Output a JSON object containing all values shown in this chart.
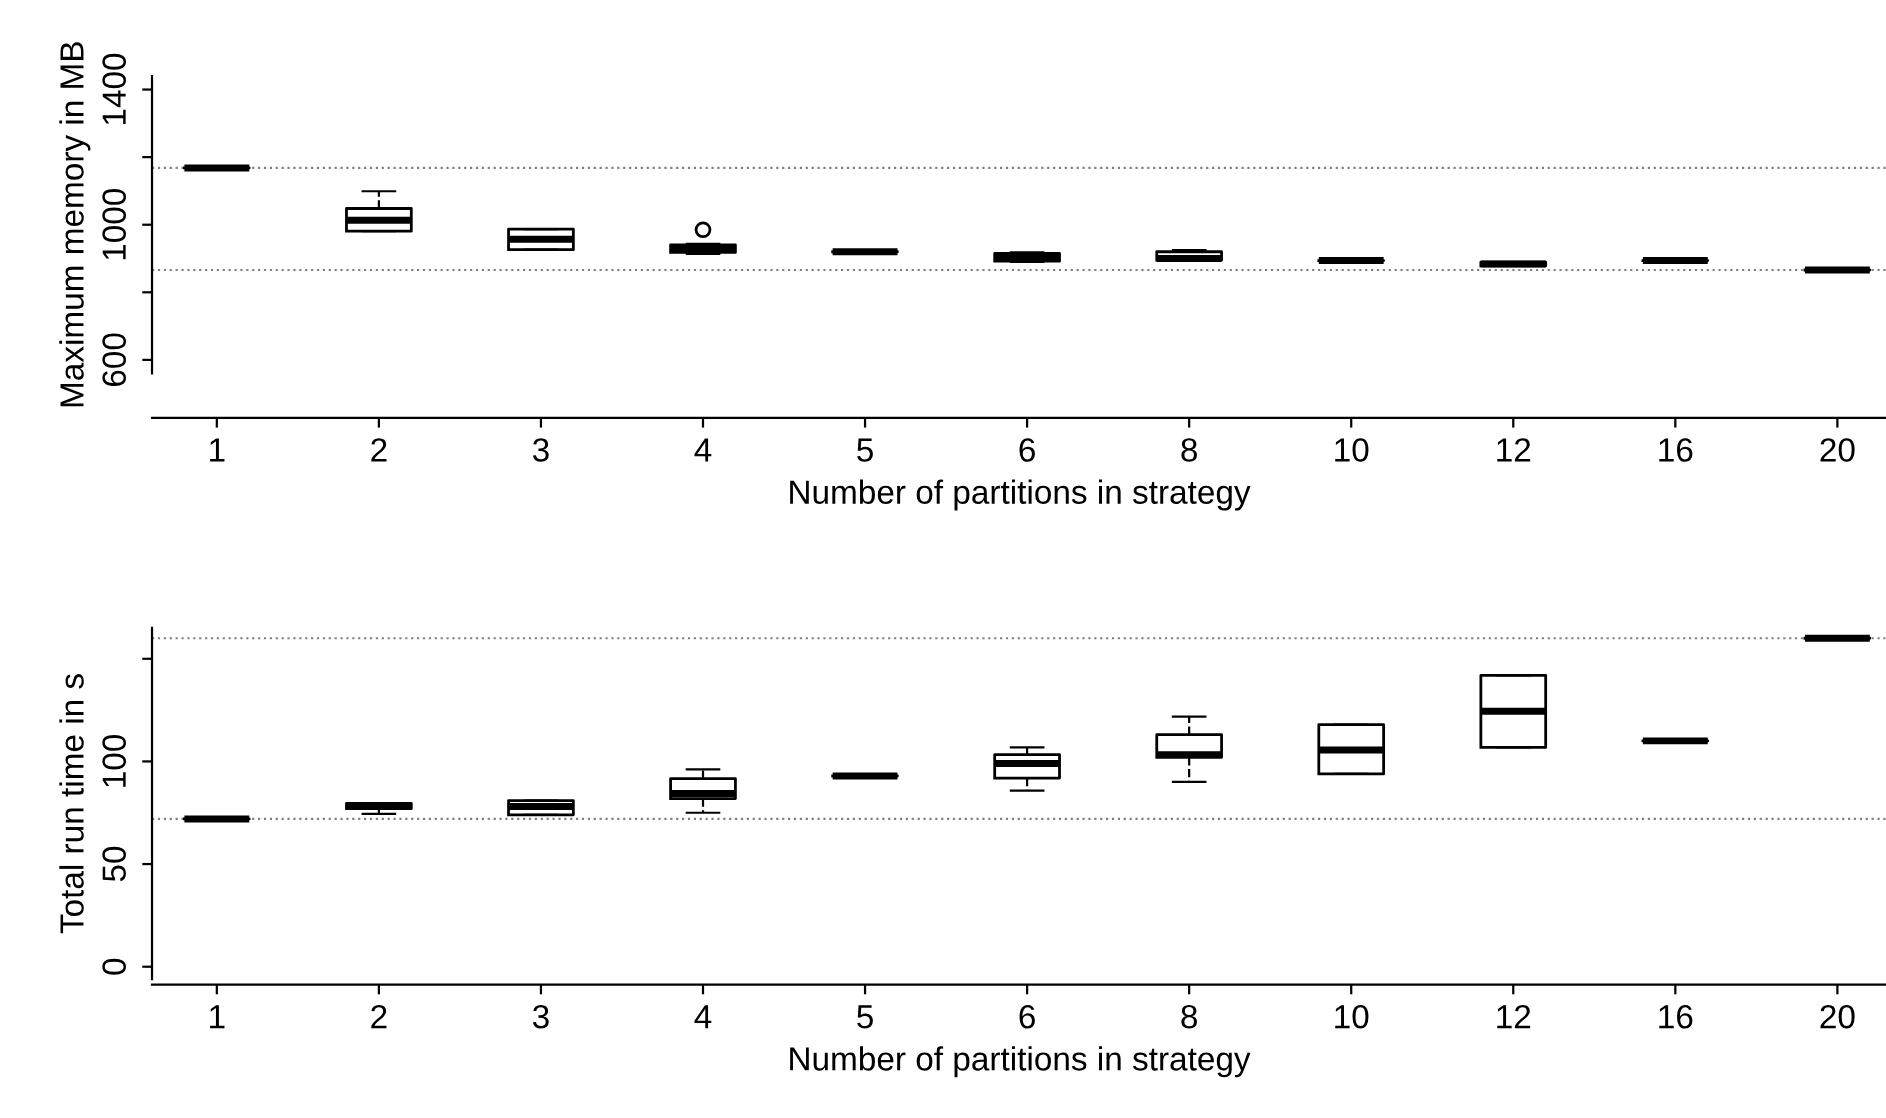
{
  "chart_data": [
    {
      "type": "box",
      "xlabel": "Number of partitions in strategy",
      "ylabel": "Maximum memory in MB",
      "categories": [
        "1",
        "2",
        "3",
        "4",
        "5",
        "6",
        "8",
        "10",
        "12",
        "16",
        "20"
      ],
      "boxes": [
        {
          "low": 1168,
          "q1": 1168,
          "median": 1168,
          "q3": 1168,
          "high": 1168
        },
        {
          "low": 981,
          "q1": 981,
          "median": 1013,
          "q3": 1048,
          "high": 1099
        },
        {
          "low": 926,
          "q1": 926,
          "median": 957,
          "q3": 987,
          "high": 987
        },
        {
          "low": 914,
          "q1": 918,
          "median": 930,
          "q3": 940,
          "high": 943,
          "outliers": [
            985
          ]
        },
        {
          "low": 920,
          "q1": 920,
          "median": 920,
          "q3": 920,
          "high": 920
        },
        {
          "low": 890,
          "q1": 892,
          "median": 904,
          "q3": 915,
          "high": 918
        },
        {
          "low": 893,
          "q1": 895,
          "median": 900,
          "q3": 920,
          "high": 925
        },
        {
          "low": 894,
          "q1": 894,
          "median": 894,
          "q3": 894,
          "high": 894
        },
        {
          "low": 878,
          "q1": 878,
          "median": 884,
          "q3": 889,
          "high": 889
        },
        {
          "low": 894,
          "q1": 894,
          "median": 894,
          "q3": 894,
          "high": 894
        },
        {
          "low": 866,
          "q1": 866,
          "median": 866,
          "q3": 866,
          "high": 866
        }
      ],
      "ylim": [
        560,
        1440
      ],
      "yticks": [
        600,
        {
          "value": 800,
          "label": null
        },
        1000,
        {
          "value": 1200,
          "label": null
        },
        1400
      ],
      "ref_lines": [
        {
          "axis": "y",
          "value": 1168,
          "color": "#808080",
          "line_style": "dotted"
        },
        {
          "axis": "y",
          "value": 866,
          "color": "#808080",
          "line_style": "dotted"
        }
      ],
      "grid": false
    },
    {
      "type": "box",
      "xlabel": "Number of partitions in strategy",
      "ylabel": "Total run time in s",
      "categories": [
        "1",
        "2",
        "3",
        "4",
        "5",
        "6",
        "8",
        "10",
        "12",
        "16",
        "20"
      ],
      "boxes": [
        {
          "low": 72,
          "q1": 72,
          "median": 72,
          "q3": 72,
          "high": 72
        },
        {
          "low": 74.4,
          "q1": 77,
          "median": 78.3,
          "q3": 79.5,
          "high": 79.5
        },
        {
          "low": 74,
          "q1": 74,
          "median": 78,
          "q3": 80.9,
          "high": 80.9
        },
        {
          "low": 75,
          "q1": 81.9,
          "median": 84.4,
          "q3": 91.6,
          "high": 96.1
        },
        {
          "low": 92.9,
          "q1": 92.9,
          "median": 92.9,
          "q3": 92.9,
          "high": 92.9
        },
        {
          "low": 85.8,
          "q1": 91.9,
          "median": 99,
          "q3": 103.3,
          "high": 106.8
        },
        {
          "low": 90,
          "q1": 102,
          "median": 103.3,
          "q3": 113,
          "high": 121.8
        },
        {
          "low": 93.9,
          "q1": 93.9,
          "median": 105.6,
          "q3": 117.9,
          "high": 117.9
        },
        {
          "low": 106.8,
          "q1": 106.8,
          "median": 124.4,
          "q3": 141.9,
          "high": 141.9
        },
        {
          "low": 110,
          "q1": 110,
          "median": 110,
          "q3": 110,
          "high": 110
        },
        {
          "low": 160,
          "q1": 160,
          "median": 160,
          "q3": 160,
          "high": 160
        }
      ],
      "ylim": [
        -6,
        165
      ],
      "yticks": [
        0,
        50,
        100,
        {
          "value": 150,
          "label": null
        }
      ],
      "ref_lines": [
        {
          "axis": "y",
          "value": 160,
          "color": "#808080",
          "line_style": "dotted"
        },
        {
          "axis": "y",
          "value": 72,
          "color": "#808080",
          "line_style": "dotted"
        }
      ],
      "grid": false
    }
  ]
}
